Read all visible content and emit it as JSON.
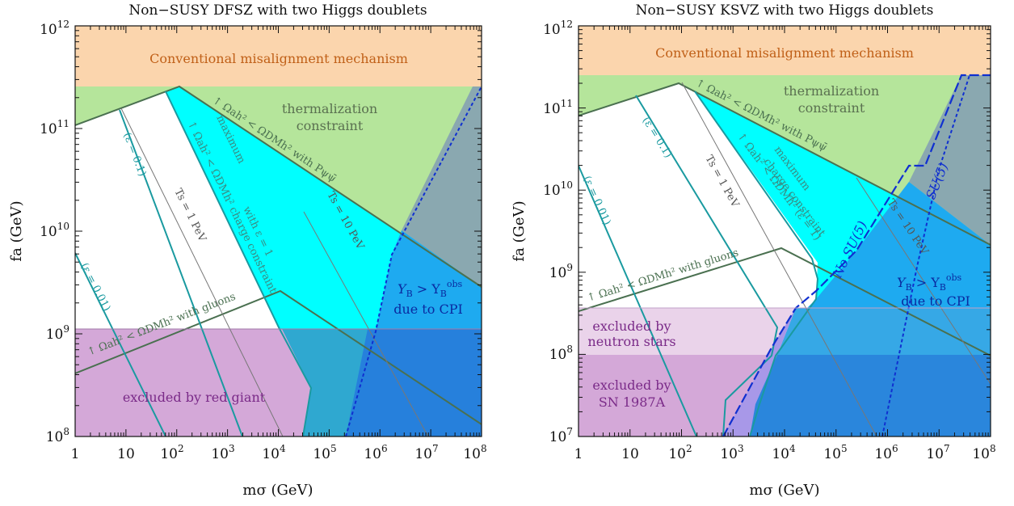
{
  "chart_data": [
    {
      "type": "area",
      "title": "Non−SUSY DFSZ with two Higgs doublets",
      "xlabel": "mσ (GeV)",
      "ylabel": "fa (GeV)",
      "xscale": "log",
      "yscale": "log",
      "xlim": [
        1,
        100000000
      ],
      "ylim": [
        100000000,
        1000000000000
      ],
      "x_ticks": [
        {
          "exp": "",
          "base": "1"
        },
        {
          "exp": "",
          "base": "10"
        },
        {
          "exp": "2",
          "base": "10"
        },
        {
          "exp": "3",
          "base": "10"
        },
        {
          "exp": "4",
          "base": "10"
        },
        {
          "exp": "5",
          "base": "10"
        },
        {
          "exp": "6",
          "base": "10"
        },
        {
          "exp": "7",
          "base": "10"
        },
        {
          "exp": "8",
          "base": "10"
        }
      ],
      "y_ticks": [
        {
          "exp": "8",
          "base": "10"
        },
        {
          "exp": "9",
          "base": "10"
        },
        {
          "exp": "10",
          "base": "10"
        },
        {
          "exp": "11",
          "base": "10"
        },
        {
          "exp": "12",
          "base": "10"
        }
      ],
      "region_labels": {
        "misalignment": "Conventional misalignment mechanism",
        "thermal_1": "thermalization",
        "thermal_2": "constraint",
        "redgiant": "excluded by red giant",
        "yb_1": "Y",
        "yb_2": "B",
        "yb_3": " > Y",
        "yb_4": "B",
        "yb_5": "obs",
        "cpi": "due to CPI"
      },
      "curve_labels": {
        "eps01": "(ε = 0.1)",
        "eps001": "(ε = 0.01)",
        "ts1": "Ts = 1 PeV",
        "ts10": "Ts = 10 PeV",
        "psi": "↑ Ωah² < ΩDMh² with Pψψ̄",
        "gluons": "↑ Ωah² < ΩDMh² with gluons",
        "maxcharge": "maximum",
        "maxcharge_2": "↑ Ωah² < ΩDMh² charge constraint",
        "maxcharge_3": "with ε = 1"
      },
      "curves": {
        "thermalization_top": {
          "x": [
            1,
            100,
            150,
            100000000
          ],
          "y": [
            100000000000,
            250000000000,
            250000000000,
            2800000000
          ]
        },
        "gluons": {
          "x": [
            1,
            12000,
            100000000
          ],
          "y": [
            400000000,
            2500000000,
            130000000
          ]
        },
        "eps1": {
          "x": [
            200,
            12000,
            45000,
            30000,
            25000
          ],
          "y": [
            250000000000,
            1100000000,
            220000000,
            150000000,
            100000000
          ]
        },
        "eps01": {
          "x": [
            1,
            10,
            400,
            25000
          ],
          "y": [
            100000000000,
            150000000000,
            100000000,
            100000000
          ]
        },
        "eps001": {
          "x": [
            1,
            60
          ],
          "y": [
            6000000000,
            100000000
          ]
        },
        "ts1": {
          "x": [
            10,
            10000
          ],
          "y": [
            150000000000,
            100000000
          ]
        },
        "ts10": {
          "x": [
            5000,
            10000000
          ],
          "y": [
            20000000000,
            100000000
          ]
        },
        "cpi_boundary": {
          "x": [
            200000,
            1000000,
            50000000,
            100000000
          ],
          "y": [
            100000000,
            5000000000,
            250000000000,
            250000000000
          ]
        }
      },
      "bands": {
        "misalignment_lower": 260000000000,
        "redgiant_upper": 1150000000
      }
    },
    {
      "type": "area",
      "title": "Non−SUSY KSVZ with two Higgs doublets",
      "xlabel": "mσ (GeV)",
      "ylabel": "fa (GeV)",
      "xscale": "log",
      "yscale": "log",
      "xlim": [
        1,
        100000000
      ],
      "ylim": [
        10000000,
        1000000000000
      ],
      "x_ticks": [
        {
          "exp": "",
          "base": "1"
        },
        {
          "exp": "",
          "base": "10"
        },
        {
          "exp": "2",
          "base": "10"
        },
        {
          "exp": "3",
          "base": "10"
        },
        {
          "exp": "4",
          "base": "10"
        },
        {
          "exp": "5",
          "base": "10"
        },
        {
          "exp": "6",
          "base": "10"
        },
        {
          "exp": "7",
          "base": "10"
        },
        {
          "exp": "8",
          "base": "10"
        }
      ],
      "y_ticks": [
        {
          "exp": "7",
          "base": "10"
        },
        {
          "exp": "8",
          "base": "10"
        },
        {
          "exp": "9",
          "base": "10"
        },
        {
          "exp": "10",
          "base": "10"
        },
        {
          "exp": "11",
          "base": "10"
        },
        {
          "exp": "12",
          "base": "10"
        }
      ],
      "region_labels": {
        "misalignment": "Conventional misalignment mechanism",
        "thermal_1": "thermalization",
        "thermal_2": "constraint",
        "ns_1": "excluded by",
        "ns_2": "neutron stars",
        "sn_1": "excluded by",
        "sn_2": "SN 1987A",
        "yb_1": "Y",
        "yb_2": "B",
        "yb_3": " > Y",
        "yb_4": "B",
        "yb_5": "obs",
        "cpi": "due to CPI"
      },
      "curve_labels": {
        "eps01": "(ε = 0.1)",
        "eps001": "(ε = 0.01)",
        "ts1": "Ts = 1 PeV",
        "ts10": "Ts = 10 PeV",
        "psi": "↑ Ωah² < ΩDMh² with Pψψ̄",
        "gluons": "↑ Ωah² < ΩDMh² with gluons",
        "maxcharge": "maximum",
        "maxcharge_2": "charge constraint",
        "maxcharge_3": "↑ Ωah² < ΩDMh² (ε = 1)",
        "nosu5": "No SU(5)",
        "su5": "SU(5)"
      },
      "curves": {
        "thermalization_top": {
          "x": [
            1,
            80,
            120,
            100000000
          ],
          "y": [
            90000000000,
            200000000000,
            200000000000,
            1800000000
          ]
        },
        "gluons": {
          "x": [
            1,
            8000,
            100000000
          ],
          "y": [
            330000000,
            2000000000,
            90000000
          ]
        },
        "eps1": {
          "x": [
            200,
            20000,
            40000,
            45000,
            5000,
            2500,
            1500
          ],
          "y": [
            200000000000,
            2500000000,
            2000000000,
            1000000000,
            250000000,
            100000000,
            10000000
          ]
        },
        "eps01": {
          "x": [
            1,
            10,
            3000,
            800
          ],
          "y": [
            80000000000,
            100000000000,
            170000000,
            10000000
          ]
        },
        "eps001": {
          "x": [
            1,
            700
          ],
          "y": [
            20000000000,
            10000000
          ]
        },
        "ts1": {
          "x": [
            80,
            200000
          ],
          "y": [
            200000000000,
            10000000
          ]
        },
        "ts10": {
          "x": [
            20000,
            100000000
          ],
          "y": [
            20000000000,
            40000000
          ]
        },
        "nosu5": {
          "x": [
            700,
            2000,
            10000,
            1000000,
            3000000,
            40000000,
            100000000
          ],
          "y": [
            10000000,
            120000000,
            500000000,
            20000000000,
            20000000000,
            250000000000,
            250000000000
          ]
        },
        "su5": {
          "x": [
            100000,
            1000000,
            50000000
          ],
          "y": [
            10000000,
            2000000000,
            250000000000
          ]
        }
      },
      "bands": {
        "misalignment_lower": 260000000000,
        "neutron_star_upper": 380000000,
        "sn1987a_upper": 100000000
      }
    }
  ]
}
